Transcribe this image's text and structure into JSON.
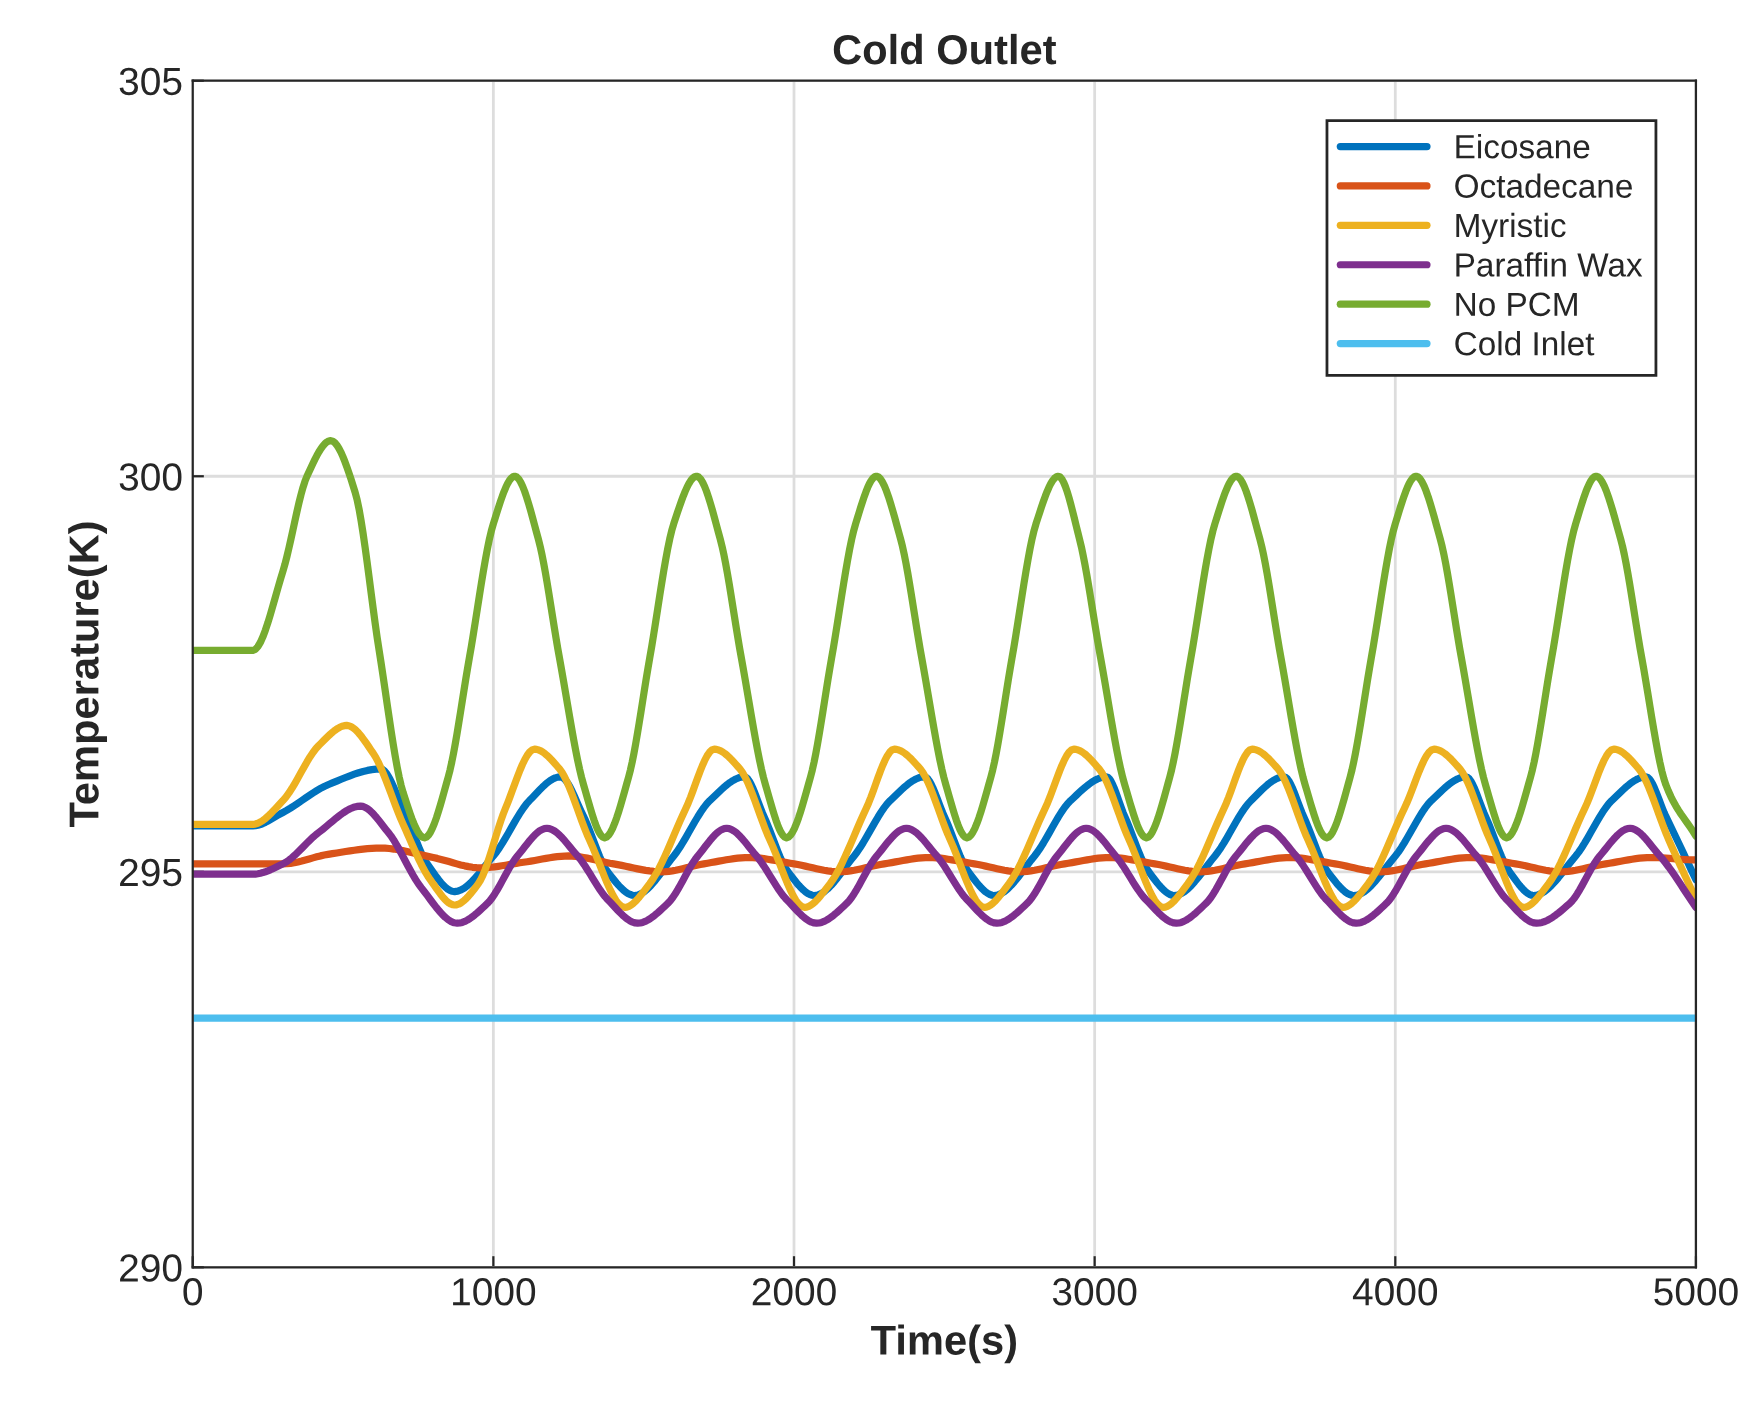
{
  "chart_data": {
    "type": "line",
    "title": "Cold Outlet",
    "xlabel": "Time(s)",
    "ylabel": "Temperature(K)",
    "xlim": [
      0,
      5000
    ],
    "xticks": [
      0,
      1000,
      2000,
      3000,
      4000,
      5000
    ],
    "ylim": [
      290,
      305
    ],
    "yticks": [
      290,
      295,
      300,
      305
    ],
    "grid": true,
    "legend": "top right",
    "line_style": "solid",
    "marker": "none",
    "series": [
      {
        "name": "Eicosane",
        "color": "#0072bd",
        "x": [
          0,
          200,
          300,
          450,
          625,
          700,
          780,
          871,
          1000,
          1120,
          1223,
          1300,
          1380,
          1470,
          1600,
          1720,
          1835,
          1900,
          1980,
          2068,
          2200,
          2320,
          2434,
          2500,
          2580,
          2666,
          2800,
          2920,
          3039,
          3100,
          3180,
          3265,
          3400,
          3520,
          3630,
          3695,
          3775,
          3863,
          4000,
          4120,
          4235,
          4300,
          4380,
          4461,
          4600,
          4720,
          4834,
          4900,
          5000
        ],
        "values": [
          295.58,
          295.58,
          295.75,
          296.1,
          296.3,
          295.8,
          295.1,
          294.75,
          295.2,
          295.9,
          296.2,
          295.7,
          295.0,
          294.7,
          295.2,
          295.9,
          296.2,
          295.7,
          295.0,
          294.7,
          295.2,
          295.9,
          296.2,
          295.7,
          295.0,
          294.7,
          295.2,
          295.9,
          296.2,
          295.7,
          295.0,
          294.7,
          295.2,
          295.9,
          296.2,
          295.7,
          295.0,
          294.7,
          295.2,
          295.9,
          296.2,
          295.7,
          295.0,
          294.7,
          295.2,
          295.9,
          296.2,
          295.7,
          294.9
        ]
      },
      {
        "name": "Octadecane",
        "color": "#d95319",
        "x": [
          0,
          300,
          450,
          625,
          800,
          957,
          1100,
          1250,
          1400,
          1560,
          1700,
          1850,
          2000,
          2150,
          2300,
          2450,
          2600,
          2750,
          2900,
          3050,
          3200,
          3350,
          3500,
          3650,
          3800,
          3950,
          4100,
          4250,
          4400,
          4550,
          4700,
          4850,
          5000
        ],
        "values": [
          295.1,
          295.1,
          295.22,
          295.3,
          295.18,
          295.05,
          295.12,
          295.2,
          295.1,
          295.0,
          295.1,
          295.18,
          295.1,
          295.0,
          295.1,
          295.18,
          295.1,
          295.0,
          295.1,
          295.18,
          295.1,
          295.0,
          295.1,
          295.18,
          295.1,
          295.0,
          295.1,
          295.18,
          295.1,
          295.0,
          295.1,
          295.18,
          295.15
        ]
      },
      {
        "name": "Myristic",
        "color": "#edb120",
        "x": [
          0,
          200,
          300,
          420,
          512,
          600,
          700,
          790,
          871,
          950,
          1040,
          1137,
          1220,
          1320,
          1437,
          1520,
          1640,
          1735,
          1820,
          1920,
          2035,
          2120,
          2240,
          2334,
          2420,
          2520,
          2633,
          2715,
          2835,
          2931,
          3015,
          3115,
          3228,
          3310,
          3430,
          3524,
          3610,
          3710,
          3826,
          3910,
          4030,
          4129,
          4215,
          4315,
          4427,
          4510,
          4630,
          4727,
          4810,
          4910,
          5000
        ],
        "values": [
          295.6,
          295.6,
          295.9,
          296.6,
          296.85,
          296.5,
          295.6,
          294.9,
          294.58,
          294.85,
          295.8,
          296.55,
          296.3,
          295.4,
          294.55,
          294.85,
          295.8,
          296.55,
          296.3,
          295.4,
          294.55,
          294.85,
          295.8,
          296.55,
          296.3,
          295.4,
          294.55,
          294.85,
          295.8,
          296.55,
          296.3,
          295.4,
          294.55,
          294.85,
          295.8,
          296.55,
          296.3,
          295.4,
          294.55,
          294.85,
          295.8,
          296.55,
          296.3,
          295.4,
          294.55,
          294.85,
          295.8,
          296.55,
          296.3,
          295.4,
          294.65
        ]
      },
      {
        "name": "Paraffin Wax",
        "color": "#7e2f8e",
        "x": [
          0,
          200,
          300,
          420,
          558,
          650,
          760,
          880,
          980,
          1080,
          1178,
          1280,
          1380,
          1480,
          1580,
          1680,
          1776,
          1875,
          1975,
          2075,
          2175,
          2275,
          2374,
          2475,
          2575,
          2675,
          2775,
          2875,
          2972,
          3070,
          3170,
          3272,
          3370,
          3470,
          3570,
          3670,
          3770,
          3870,
          3970,
          4070,
          4169,
          4270,
          4370,
          4470,
          4580,
          4680,
          4781,
          4880,
          5000
        ],
        "values": [
          294.97,
          294.97,
          295.1,
          295.5,
          295.83,
          295.5,
          294.8,
          294.35,
          294.6,
          295.2,
          295.55,
          295.2,
          294.65,
          294.35,
          294.6,
          295.2,
          295.55,
          295.2,
          294.65,
          294.35,
          294.6,
          295.2,
          295.55,
          295.2,
          294.65,
          294.35,
          294.6,
          295.2,
          295.55,
          295.2,
          294.65,
          294.35,
          294.6,
          295.2,
          295.55,
          295.2,
          294.65,
          294.35,
          294.6,
          295.2,
          295.55,
          295.2,
          294.65,
          294.35,
          294.6,
          295.2,
          295.55,
          295.2,
          294.55
        ]
      },
      {
        "name": "No PCM",
        "color": "#77ac30",
        "x": [
          0,
          200,
          300,
          380,
          459,
          540,
          620,
          700,
          771,
          850,
          920,
          1000,
          1071,
          1150,
          1220,
          1300,
          1370,
          1450,
          1520,
          1600,
          1676,
          1755,
          1825,
          1905,
          1975,
          2055,
          2125,
          2205,
          2274,
          2355,
          2425,
          2505,
          2575,
          2655,
          2725,
          2805,
          2879,
          2950,
          3020,
          3100,
          3172,
          3250,
          3320,
          3400,
          3471,
          3550,
          3620,
          3700,
          3772,
          3850,
          3920,
          4000,
          4069,
          4150,
          4220,
          4300,
          4370,
          4450,
          4520,
          4600,
          4668,
          4750,
          4820,
          4900,
          5000
        ],
        "values": [
          297.8,
          297.8,
          298.8,
          300.0,
          300.45,
          299.8,
          297.8,
          296.0,
          295.43,
          296.2,
          297.7,
          299.4,
          300.0,
          299.2,
          297.7,
          296.1,
          295.43,
          296.2,
          297.7,
          299.4,
          300.0,
          299.2,
          297.7,
          296.1,
          295.43,
          296.2,
          297.7,
          299.4,
          300.0,
          299.2,
          297.7,
          296.1,
          295.43,
          296.2,
          297.7,
          299.4,
          300.0,
          299.2,
          297.7,
          296.1,
          295.43,
          296.2,
          297.7,
          299.4,
          300.0,
          299.2,
          297.7,
          296.1,
          295.43,
          296.2,
          297.7,
          299.4,
          300.0,
          299.2,
          297.7,
          296.1,
          295.43,
          296.2,
          297.7,
          299.4,
          300.0,
          299.2,
          297.7,
          296.1,
          295.45
        ]
      },
      {
        "name": "Cold Inlet",
        "color": "#4dbeee",
        "x": [
          0,
          5000
        ],
        "values": [
          293.15,
          293.15
        ]
      }
    ]
  }
}
